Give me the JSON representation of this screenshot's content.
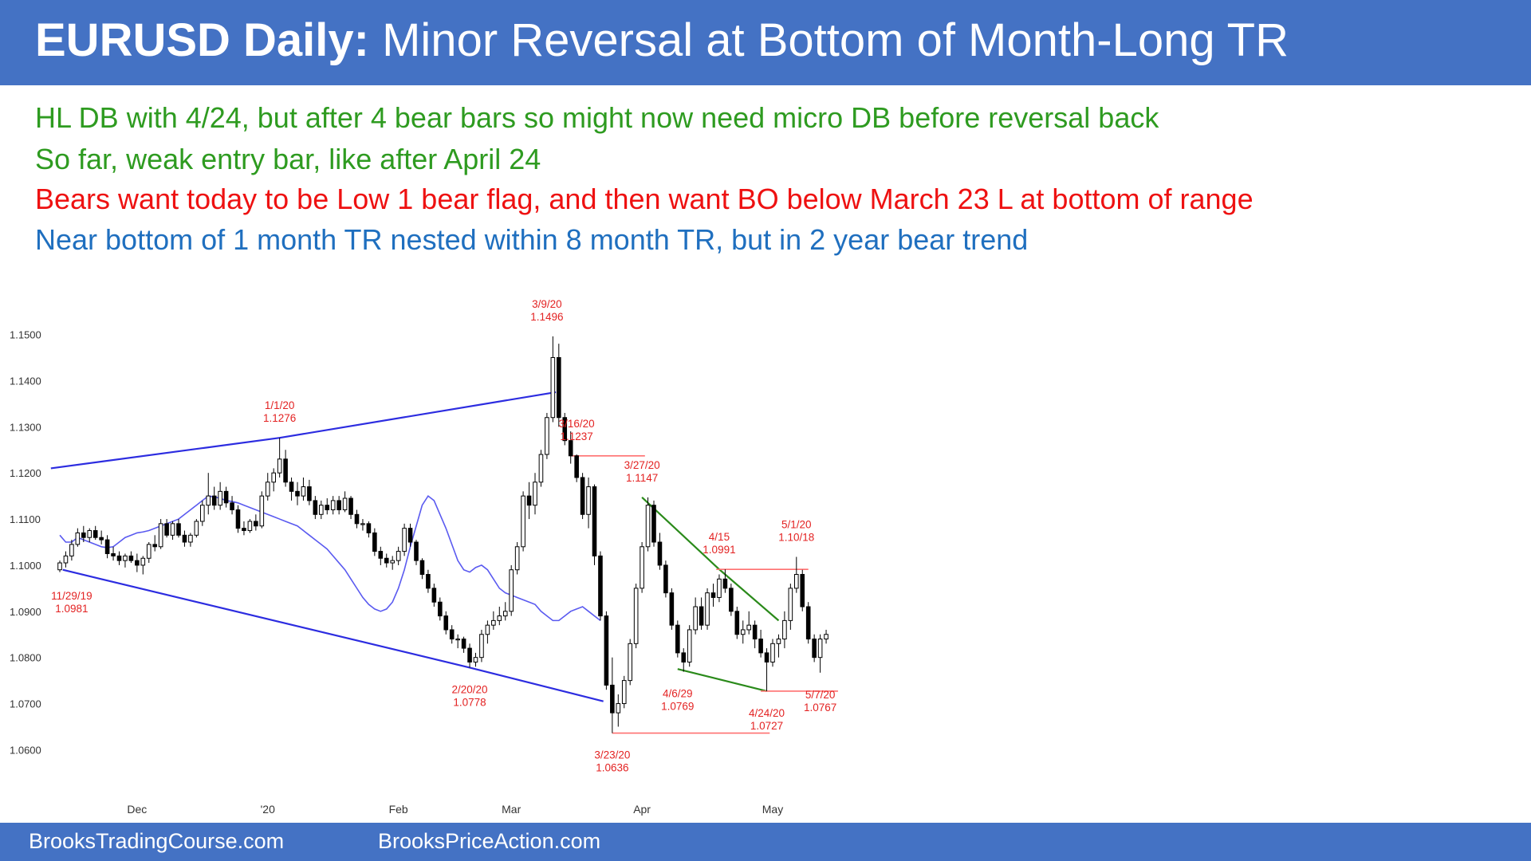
{
  "header": {
    "title_bold": "EURUSD Daily:",
    "title_rest": "Minor Reversal at Bottom of Month-Long TR",
    "bg_color": "#4472c4"
  },
  "notes": [
    {
      "text": "HL DB with 4/24, but after 4 bear bars so might now need micro DB before reversal back",
      "color": "#2e9b20"
    },
    {
      "text": "So far, weak entry bar, like after April 24",
      "color": "#2e9b20"
    },
    {
      "text": "Bears want today to be Low 1 bear flag, and then want BO below March 23 L at bottom of range",
      "color": "#ee1111"
    },
    {
      "text": "Near bottom of 1 month TR nested within 8 month TR, but in 2 year bear trend",
      "color": "#1f6fbf"
    }
  ],
  "footer": {
    "left": "BrooksTradingCourse.com",
    "right": "BrooksPriceAction.com"
  },
  "chart_data": {
    "type": "candlestick",
    "y_range": [
      1.058,
      1.152
    ],
    "y_ticks": [
      "1.1500",
      "1.1400",
      "1.1300",
      "1.1200",
      "1.1100",
      "1.1000",
      "1.0900",
      "1.0800",
      "1.0700",
      "1.0600"
    ],
    "x_labels": [
      {
        "label": "Dec",
        "bar": 13
      },
      {
        "label": "'20",
        "bar": 35
      },
      {
        "label": "Feb",
        "bar": 57
      },
      {
        "label": "Mar",
        "bar": 76
      },
      {
        "label": "Apr",
        "bar": 98
      },
      {
        "label": "May",
        "bar": 120
      }
    ],
    "candles": [
      [
        1.099,
        1.101,
        1.0985,
        1.1005
      ],
      [
        1.1005,
        1.103,
        1.0995,
        1.102
      ],
      [
        1.102,
        1.1055,
        1.101,
        1.1045
      ],
      [
        1.1045,
        1.108,
        1.104,
        1.107
      ],
      [
        1.107,
        1.1085,
        1.105,
        1.106
      ],
      [
        1.106,
        1.108,
        1.105,
        1.1075
      ],
      [
        1.1075,
        1.1085,
        1.1055,
        1.106
      ],
      [
        1.106,
        1.1075,
        1.1045,
        1.1055
      ],
      [
        1.1055,
        1.1065,
        1.1015,
        1.1025
      ],
      [
        1.1025,
        1.104,
        1.101,
        1.102
      ],
      [
        1.102,
        1.103,
        1.1,
        1.101
      ],
      [
        1.101,
        1.1025,
        1.0995,
        1.102
      ],
      [
        1.102,
        1.103,
        1.1005,
        1.101
      ],
      [
        1.101,
        1.1025,
        1.0985,
        1.1
      ],
      [
        1.1,
        1.102,
        1.098,
        1.1015
      ],
      [
        1.1015,
        1.105,
        1.1005,
        1.1045
      ],
      [
        1.1045,
        1.1065,
        1.103,
        1.104
      ],
      [
        1.104,
        1.11,
        1.1035,
        1.109
      ],
      [
        1.109,
        1.11,
        1.106,
        1.1065
      ],
      [
        1.1065,
        1.1095,
        1.1055,
        1.109
      ],
      [
        1.109,
        1.11,
        1.106,
        1.1065
      ],
      [
        1.1065,
        1.1075,
        1.104,
        1.105
      ],
      [
        1.105,
        1.107,
        1.104,
        1.1065
      ],
      [
        1.1065,
        1.11,
        1.106,
        1.1095
      ],
      [
        1.1095,
        1.114,
        1.1085,
        1.113
      ],
      [
        1.113,
        1.12,
        1.111,
        1.115
      ],
      [
        1.115,
        1.117,
        1.112,
        1.113
      ],
      [
        1.113,
        1.118,
        1.112,
        1.116
      ],
      [
        1.116,
        1.117,
        1.1125,
        1.1135
      ],
      [
        1.1135,
        1.115,
        1.111,
        1.112
      ],
      [
        1.112,
        1.113,
        1.107,
        1.108
      ],
      [
        1.108,
        1.1095,
        1.1065,
        1.1075
      ],
      [
        1.1075,
        1.11,
        1.107,
        1.1095
      ],
      [
        1.1095,
        1.111,
        1.1075,
        1.1085
      ],
      [
        1.1085,
        1.116,
        1.108,
        1.115
      ],
      [
        1.115,
        1.12,
        1.114,
        1.118
      ],
      [
        1.118,
        1.121,
        1.116,
        1.12
      ],
      [
        1.12,
        1.1276,
        1.119,
        1.123
      ],
      [
        1.123,
        1.125,
        1.117,
        1.118
      ],
      [
        1.118,
        1.119,
        1.114,
        1.116
      ],
      [
        1.116,
        1.118,
        1.113,
        1.115
      ],
      [
        1.115,
        1.119,
        1.114,
        1.117
      ],
      [
        1.117,
        1.1185,
        1.113,
        1.114
      ],
      [
        1.114,
        1.115,
        1.11,
        1.111
      ],
      [
        1.111,
        1.114,
        1.11,
        1.113
      ],
      [
        1.113,
        1.1145,
        1.111,
        1.112
      ],
      [
        1.112,
        1.115,
        1.111,
        1.114
      ],
      [
        1.114,
        1.115,
        1.111,
        1.112
      ],
      [
        1.112,
        1.116,
        1.1115,
        1.1145
      ],
      [
        1.1145,
        1.115,
        1.11,
        1.111
      ],
      [
        1.111,
        1.112,
        1.108,
        1.109
      ],
      [
        1.109,
        1.11,
        1.1075,
        1.109
      ],
      [
        1.109,
        1.1095,
        1.106,
        1.107
      ],
      [
        1.107,
        1.108,
        1.102,
        1.103
      ],
      [
        1.103,
        1.104,
        1.1,
        1.1015
      ],
      [
        1.1015,
        1.1025,
        1.0995,
        1.1005
      ],
      [
        1.1005,
        1.102,
        1.099,
        1.101
      ],
      [
        1.101,
        1.104,
        1.1,
        1.103
      ],
      [
        1.103,
        1.109,
        1.102,
        1.108
      ],
      [
        1.108,
        1.109,
        1.104,
        1.105
      ],
      [
        1.105,
        1.1055,
        1.1,
        1.101
      ],
      [
        1.101,
        1.1015,
        1.097,
        1.098
      ],
      [
        1.098,
        1.099,
        1.094,
        1.095
      ],
      [
        1.095,
        1.096,
        1.091,
        1.092
      ],
      [
        1.092,
        1.093,
        1.088,
        1.089
      ],
      [
        1.089,
        1.09,
        1.085,
        1.086
      ],
      [
        1.086,
        1.087,
        1.083,
        1.084
      ],
      [
        1.084,
        1.085,
        1.082,
        1.084
      ],
      [
        1.084,
        1.0845,
        1.081,
        1.082
      ],
      [
        1.082,
        1.083,
        1.0778,
        1.079
      ],
      [
        1.079,
        1.081,
        1.078,
        1.08
      ],
      [
        1.08,
        1.086,
        1.079,
        1.085
      ],
      [
        1.085,
        1.088,
        1.083,
        1.087
      ],
      [
        1.087,
        1.09,
        1.086,
        1.088
      ],
      [
        1.088,
        1.091,
        1.087,
        1.089
      ],
      [
        1.089,
        1.092,
        1.088,
        1.09
      ],
      [
        1.09,
        1.1,
        1.089,
        1.099
      ],
      [
        1.099,
        1.105,
        1.098,
        1.104
      ],
      [
        1.104,
        1.116,
        1.103,
        1.115
      ],
      [
        1.115,
        1.118,
        1.11,
        1.113
      ],
      [
        1.113,
        1.12,
        1.111,
        1.118
      ],
      [
        1.118,
        1.125,
        1.117,
        1.124
      ],
      [
        1.124,
        1.133,
        1.123,
        1.132
      ],
      [
        1.132,
        1.1496,
        1.131,
        1.145
      ],
      [
        1.145,
        1.148,
        1.13,
        1.132
      ],
      [
        1.132,
        1.133,
        1.126,
        1.127
      ],
      [
        1.127,
        1.129,
        1.122,
        1.1237
      ],
      [
        1.1237,
        1.124,
        1.118,
        1.119
      ],
      [
        1.119,
        1.12,
        1.11,
        1.111
      ],
      [
        1.111,
        1.119,
        1.108,
        1.117
      ],
      [
        1.117,
        1.1175,
        1.1,
        1.102
      ],
      [
        1.102,
        1.103,
        1.088,
        1.089
      ],
      [
        1.089,
        1.09,
        1.073,
        1.074
      ],
      [
        1.074,
        1.08,
        1.0636,
        1.068
      ],
      [
        1.068,
        1.072,
        1.065,
        1.07
      ],
      [
        1.07,
        1.076,
        1.069,
        1.075
      ],
      [
        1.075,
        1.084,
        1.074,
        1.083
      ],
      [
        1.083,
        1.096,
        1.082,
        1.095
      ],
      [
        1.095,
        1.105,
        1.094,
        1.104
      ],
      [
        1.104,
        1.1147,
        1.103,
        1.113
      ],
      [
        1.113,
        1.114,
        1.104,
        1.105
      ],
      [
        1.105,
        1.107,
        1.099,
        1.1
      ],
      [
        1.1,
        1.101,
        1.093,
        1.094
      ],
      [
        1.094,
        1.095,
        1.086,
        1.087
      ],
      [
        1.087,
        1.088,
        1.08,
        1.081
      ],
      [
        1.081,
        1.082,
        1.0769,
        1.079
      ],
      [
        1.079,
        1.087,
        1.078,
        1.086
      ],
      [
        1.086,
        1.093,
        1.085,
        1.091
      ],
      [
        1.091,
        1.093,
        1.086,
        1.087
      ],
      [
        1.087,
        1.095,
        1.086,
        1.094
      ],
      [
        1.094,
        1.096,
        1.091,
        1.093
      ],
      [
        1.093,
        1.098,
        1.092,
        1.097
      ],
      [
        1.097,
        1.0991,
        1.094,
        1.095
      ],
      [
        1.095,
        1.096,
        1.089,
        1.09
      ],
      [
        1.09,
        1.091,
        1.084,
        1.085
      ],
      [
        1.085,
        1.088,
        1.083,
        1.086
      ],
      [
        1.086,
        1.09,
        1.085,
        1.087
      ],
      [
        1.087,
        1.088,
        1.082,
        1.084
      ],
      [
        1.084,
        1.086,
        1.08,
        1.081
      ],
      [
        1.081,
        1.082,
        1.0727,
        1.079
      ],
      [
        1.079,
        1.084,
        1.078,
        1.083
      ],
      [
        1.083,
        1.085,
        1.08,
        1.084
      ],
      [
        1.084,
        1.09,
        1.082,
        1.088
      ],
      [
        1.088,
        1.096,
        1.086,
        1.095
      ],
      [
        1.095,
        1.1018,
        1.094,
        1.098
      ],
      [
        1.098,
        1.099,
        1.09,
        1.091
      ],
      [
        1.091,
        1.092,
        1.083,
        1.084
      ],
      [
        1.084,
        1.085,
        1.079,
        1.08
      ],
      [
        1.08,
        1.085,
        1.0767,
        1.084
      ],
      [
        1.084,
        1.086,
        1.083,
        1.085
      ]
    ],
    "ema_20": [
      1.1065,
      1.105,
      1.105,
      1.106,
      1.1055,
      1.105,
      1.1045,
      1.104,
      1.1038,
      1.104,
      1.105,
      1.106,
      1.1065,
      1.107,
      1.1072,
      1.1075,
      1.108,
      1.1085,
      1.109,
      1.1095,
      1.11,
      1.111,
      1.112,
      1.113,
      1.114,
      1.115,
      1.1148,
      1.1145,
      1.114,
      1.1138,
      1.1135,
      1.113,
      1.1125,
      1.112,
      1.1115,
      1.111,
      1.1105,
      1.11,
      1.1095,
      1.109,
      1.1085,
      1.1075,
      1.1065,
      1.1055,
      1.1045,
      1.1035,
      1.102,
      1.1005,
      1.099,
      1.097,
      1.095,
      1.093,
      1.0915,
      1.0905,
      1.09,
      1.0905,
      1.092,
      1.095,
      1.099,
      1.104,
      1.1085,
      1.113,
      1.115,
      1.114,
      1.111,
      1.108,
      1.1045,
      1.101,
      1.099,
      1.0985,
      1.0995,
      1.1,
      1.099,
      1.097,
      1.095,
      1.094,
      1.0935,
      1.093,
      1.0925,
      1.092,
      1.0915,
      1.09,
      1.089,
      1.088,
      1.088,
      1.089,
      1.09,
      1.0905,
      1.091,
      1.09,
      1.089,
      1.088
    ],
    "lines": [
      {
        "color": "#2c2ce0",
        "points": [
          [
            -1.5,
            1.121
          ],
          [
            37,
            1.1276
          ],
          [
            83.5,
            1.1375
          ]
        ]
      },
      {
        "color": "#2c2ce0",
        "points": [
          [
            0.5,
            1.099
          ],
          [
            69,
            1.0778
          ],
          [
            91.5,
            1.0705
          ]
        ]
      },
      {
        "color": "#2a8a1a",
        "points": [
          [
            98,
            1.1147
          ],
          [
            111,
            1.0991
          ],
          [
            121,
            1.088
          ]
        ]
      },
      {
        "color": "#2a8a1a",
        "points": [
          [
            104,
            1.0775
          ],
          [
            119,
            1.0727
          ]
        ]
      }
    ],
    "hlines": [
      {
        "color": "#ff7070",
        "x1": 86,
        "x2": 98.5,
        "y": 1.1237
      },
      {
        "color": "#ff7070",
        "x1": 110.5,
        "x2": 126,
        "y": 1.0991
      },
      {
        "color": "#ff7070",
        "x1": 93,
        "x2": 119.5,
        "y": 1.0636
      },
      {
        "color": "#ff7070",
        "x1": 118,
        "x2": 131,
        "y": 1.0727
      }
    ],
    "annotations": [
      {
        "lines": [
          "3/9/20",
          "1.1496"
        ],
        "bar": 82,
        "anchor_price": 1.1496,
        "position": "above"
      },
      {
        "lines": [
          "1/1/20",
          "1.1276"
        ],
        "bar": 37,
        "anchor_price": 1.1276,
        "position": "above"
      },
      {
        "lines": [
          "3/16/20",
          "1.1237"
        ],
        "bar": 87,
        "anchor_price": 1.1237,
        "position": "above"
      },
      {
        "lines": [
          "3/27/20",
          "1.1147"
        ],
        "bar": 98,
        "anchor_price": 1.1147,
        "position": "above"
      },
      {
        "lines": [
          "4/15",
          "1.0991"
        ],
        "bar": 111,
        "anchor_price": 1.0991,
        "position": "above"
      },
      {
        "lines": [
          "5/1/20",
          "1.10/18"
        ],
        "bar": 124,
        "anchor_price": 1.1018,
        "position": "above"
      },
      {
        "lines": [
          "11/29/19",
          "1.0981"
        ],
        "bar": 2,
        "anchor_price": 1.0981,
        "position": "below"
      },
      {
        "lines": [
          "2/20/20",
          "1.0778"
        ],
        "bar": 69,
        "anchor_price": 1.0778,
        "position": "below"
      },
      {
        "lines": [
          "4/6/29",
          "1.0769"
        ],
        "bar": 104,
        "anchor_price": 1.0769,
        "position": "below"
      },
      {
        "lines": [
          "4/24/20",
          "1.0727"
        ],
        "bar": 119,
        "anchor_price": 1.0727,
        "position": "below"
      },
      {
        "lines": [
          "5/7/20",
          "1.0767"
        ],
        "bar": 128,
        "anchor_price": 1.0767,
        "position": "below"
      },
      {
        "lines": [
          "3/23/20",
          "1.0636"
        ],
        "bar": 93,
        "anchor_price": 1.0636,
        "position": "below"
      }
    ]
  }
}
